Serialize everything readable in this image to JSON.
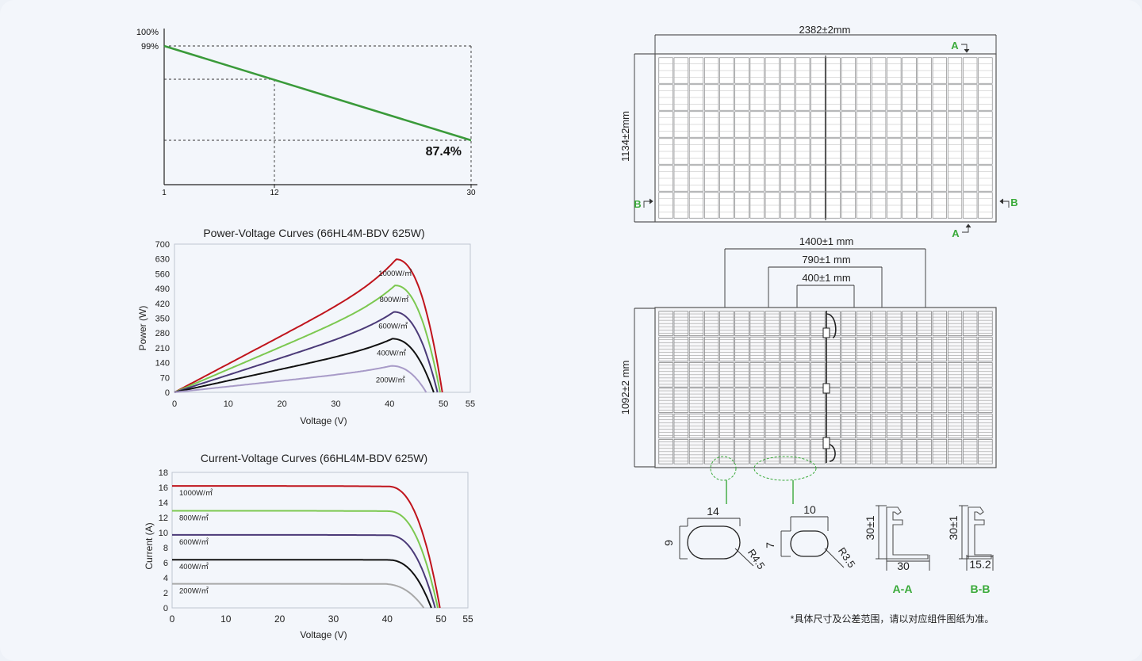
{
  "degradation": {
    "y_top_label": "100%",
    "y_start_label": "99%",
    "end_value_label": "87.4%",
    "x_ticks": [
      "1",
      "12",
      "30"
    ],
    "line_color": "#3a9a3a"
  },
  "chart_data": [
    {
      "type": "line",
      "title": "",
      "x": [
        1,
        30
      ],
      "series": [
        {
          "values": [
            99,
            87.4
          ]
        }
      ],
      "marked_x": 12,
      "ylabel": "",
      "xlabel": ""
    },
    {
      "type": "line",
      "title": "Power-Voltage Curves (66HL4M-BDV 625W)",
      "xlabel": "Voltage (V)",
      "ylabel": "Power (W)",
      "xlim": [
        0,
        55
      ],
      "ylim": [
        0,
        700
      ],
      "x_ticks": [
        0,
        10,
        20,
        30,
        40,
        50,
        55
      ],
      "y_ticks": [
        0,
        70,
        140,
        210,
        280,
        350,
        420,
        490,
        560,
        630,
        700
      ],
      "grid": false,
      "series": [
        {
          "name": "1000W/㎡",
          "color": "#c0141c",
          "vmp": 41.2,
          "pmax": 628,
          "voc": 49.8
        },
        {
          "name": "800W/㎡",
          "color": "#7cc850",
          "vmp": 41.0,
          "pmax": 505,
          "voc": 49.4
        },
        {
          "name": "600W/㎡",
          "color": "#4b3a78",
          "vmp": 40.8,
          "pmax": 380,
          "voc": 48.9
        },
        {
          "name": "400W/㎡",
          "color": "#111111",
          "vmp": 40.5,
          "pmax": 253,
          "voc": 48.2
        },
        {
          "name": "200W/㎡",
          "color": "#a89bc8",
          "vmp": 40.3,
          "pmax": 125,
          "voc": 46.8
        }
      ]
    },
    {
      "type": "line",
      "title": "Current-Voltage Curves (66HL4M-BDV 625W)",
      "xlabel": "Voltage (V)",
      "ylabel": "Current (A)",
      "xlim": [
        0,
        55
      ],
      "ylim": [
        0,
        18
      ],
      "x_ticks": [
        0,
        10,
        20,
        30,
        40,
        50,
        55
      ],
      "y_ticks": [
        0,
        2,
        4,
        6,
        8,
        10,
        12,
        14,
        16,
        18
      ],
      "grid": false,
      "series": [
        {
          "name": "1000W/㎡",
          "color": "#c0141c",
          "isc": 16.2,
          "knee": 40,
          "voc": 49.8
        },
        {
          "name": "800W/㎡",
          "color": "#7cc850",
          "isc": 12.9,
          "knee": 40,
          "voc": 49.4
        },
        {
          "name": "600W/㎡",
          "color": "#4b3a78",
          "isc": 9.7,
          "knee": 40,
          "voc": 48.9
        },
        {
          "name": "400W/㎡",
          "color": "#111111",
          "isc": 6.4,
          "knee": 40,
          "voc": 48.2
        },
        {
          "name": "200W/㎡",
          "color": "#a8a8a8",
          "isc": 3.2,
          "knee": 39,
          "voc": 46.8
        }
      ]
    }
  ],
  "drawing": {
    "front_width": "2382±2mm",
    "front_height": "1134±2mm",
    "rear_height": "1092±2 mm",
    "dim_1400": "1400±1 mm",
    "dim_790": "790±1 mm",
    "dim_400": "400±1 mm",
    "section_a": "A",
    "section_b": "B",
    "hole1_w": "14",
    "hole1_h": "9",
    "hole1_r": "R4.5",
    "hole2_w": "10",
    "hole2_h": "7",
    "hole2_r": "R3.5",
    "aa_h": "30±1",
    "aa_w": "30",
    "aa_label": "A-A",
    "bb_h": "30±1",
    "bb_w": "15.2",
    "bb_label": "B-B",
    "accent_color": "#3aaa3a",
    "note": "*具体尺寸及公差范围，请以对应组件图纸为准。"
  }
}
